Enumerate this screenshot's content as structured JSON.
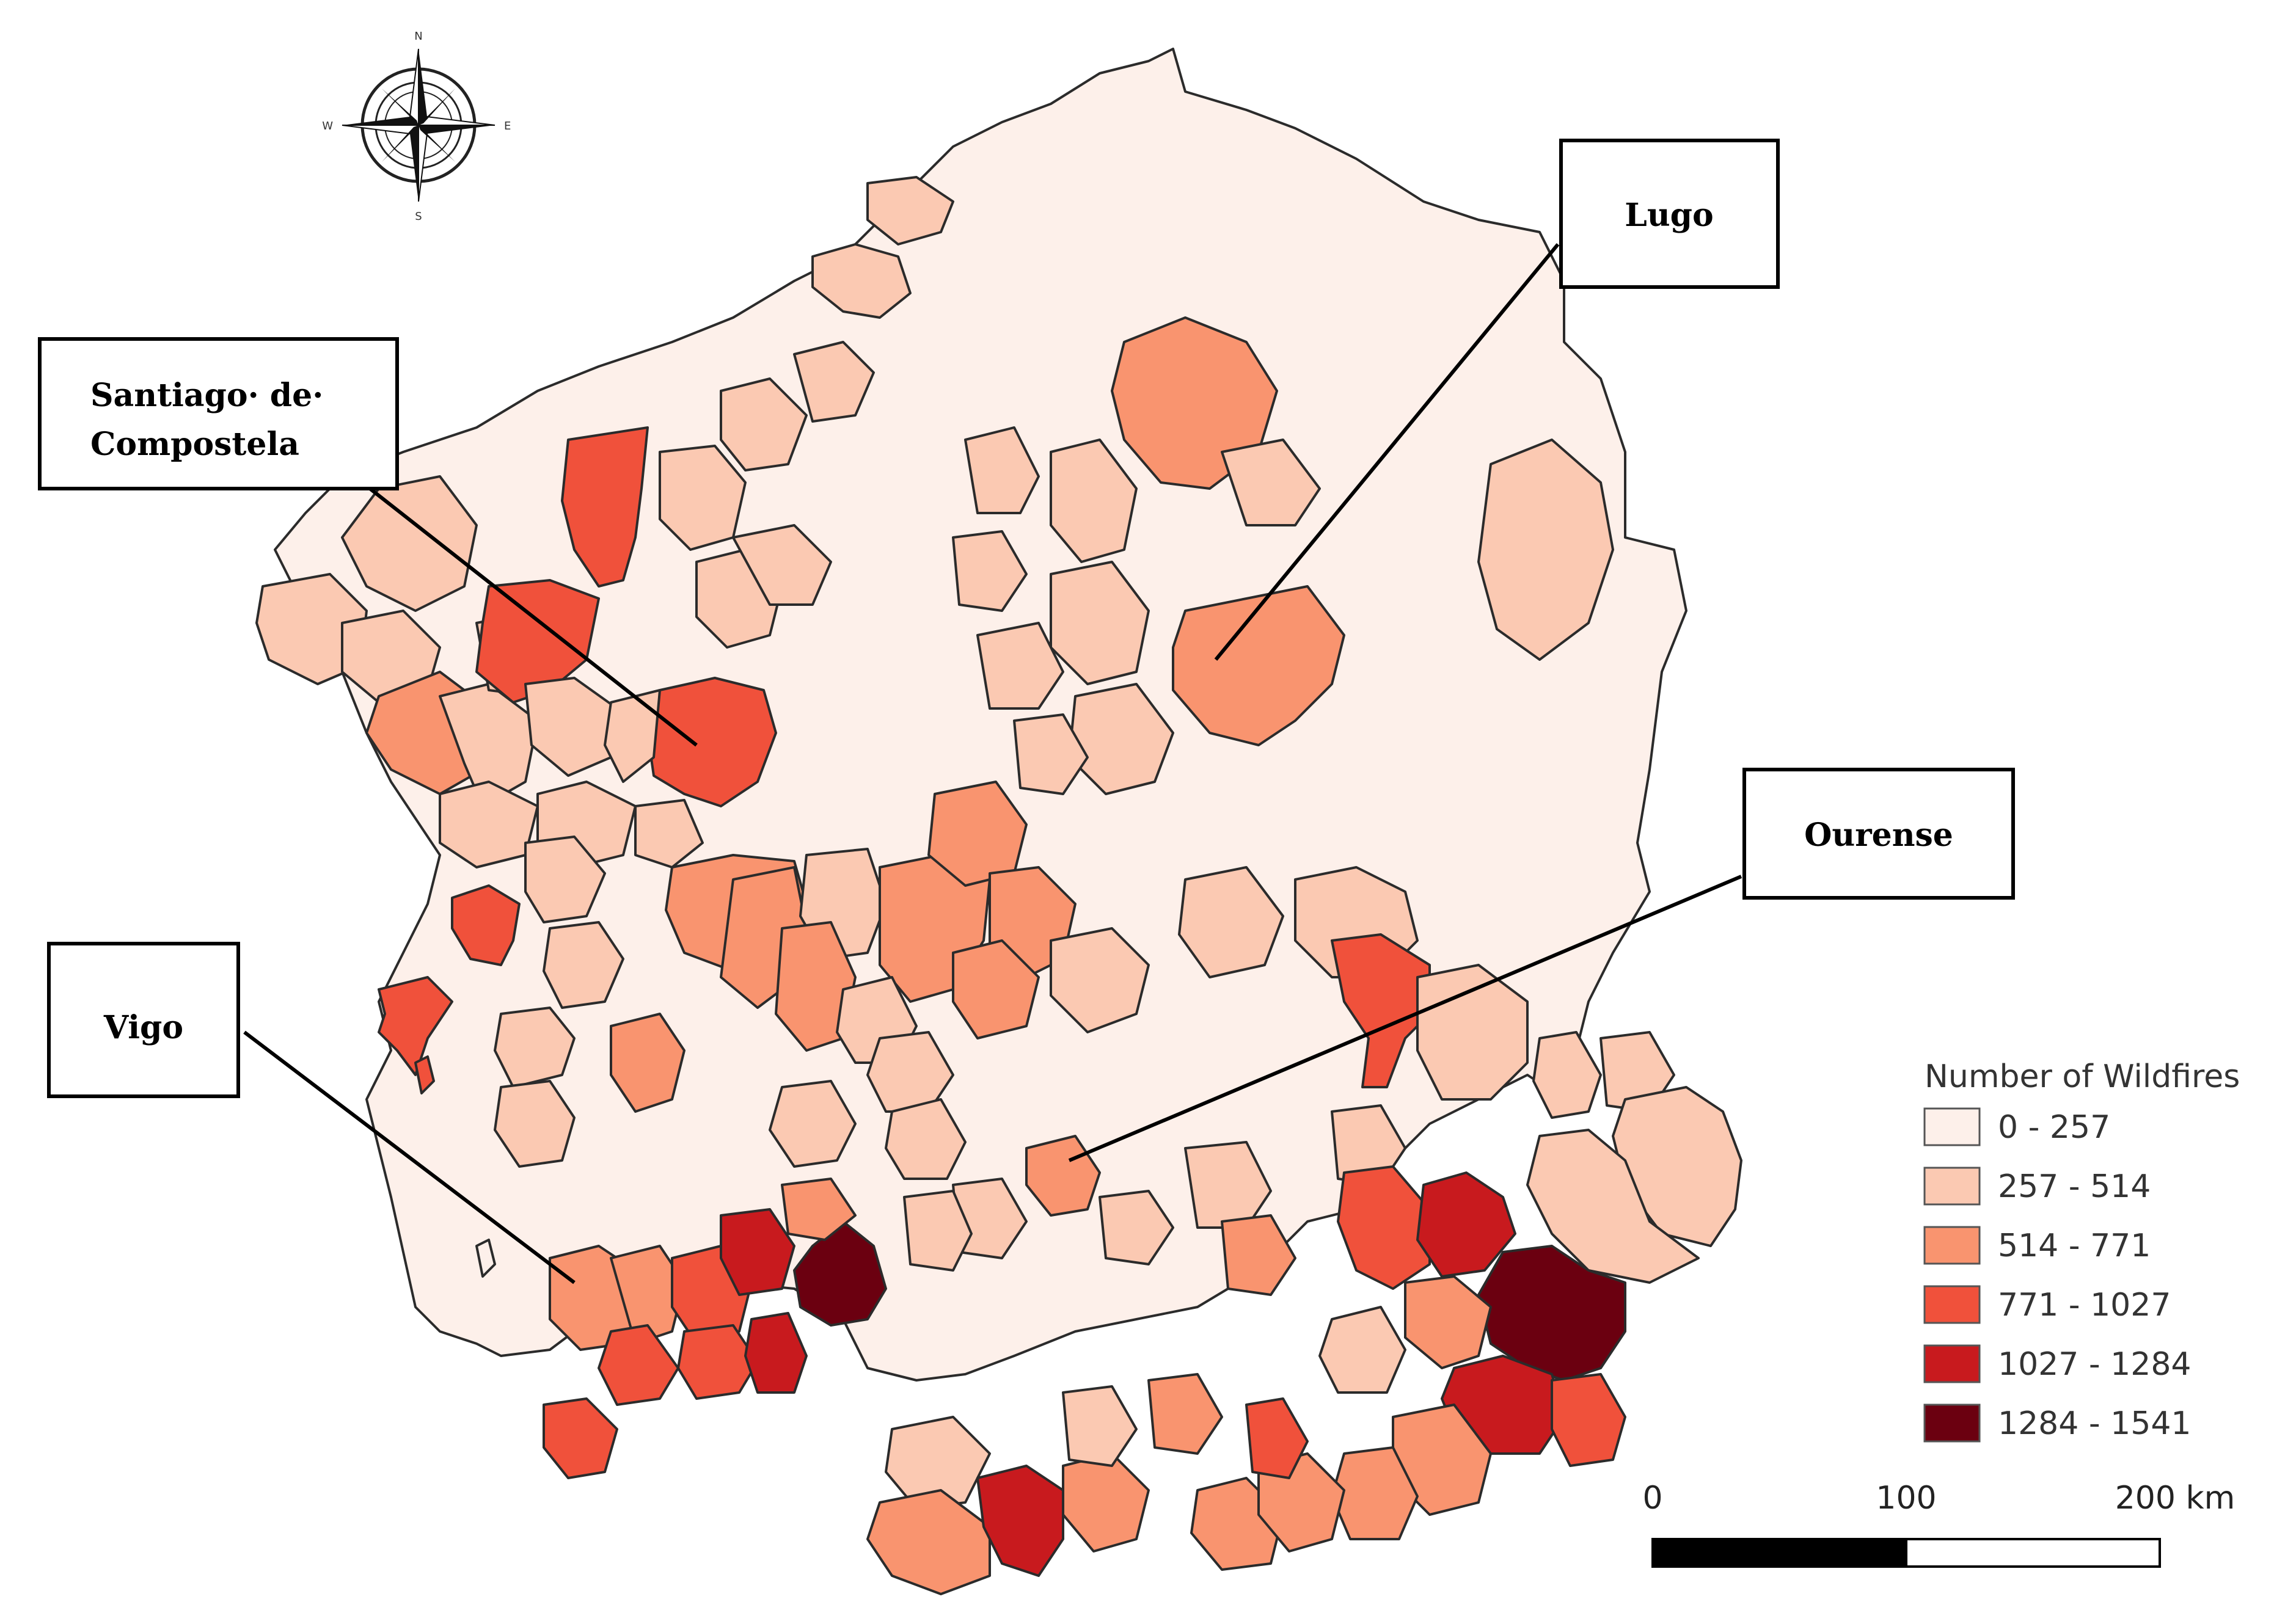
{
  "map": {
    "region_labels": [
      {
        "id": "lugo",
        "text": "Lugo"
      },
      {
        "id": "santiago",
        "lines": [
          "Santiago· de·",
          "Compostela"
        ]
      },
      {
        "id": "ourense",
        "text": "Ourense"
      },
      {
        "id": "vigo",
        "text": "Vigo"
      }
    ],
    "legend": {
      "title": "Number of Wildfires",
      "classes": [
        {
          "label": "0 - 257",
          "color": "#fdf0ea"
        },
        {
          "label": "257 - 514",
          "color": "#fbc9b2"
        },
        {
          "label": "514 - 771",
          "color": "#f9946f"
        },
        {
          "label": "771 - 1027",
          "color": "#f0513b"
        },
        {
          "label": "1027 - 1284",
          "color": "#c81a1e"
        },
        {
          "label": "1284 - 1541",
          "color": "#6b0010"
        }
      ]
    },
    "scale_bar": {
      "labels": [
        "0",
        "100",
        "200 km"
      ]
    },
    "compass": {
      "n": "N",
      "s": "S",
      "e": "E",
      "w": "W"
    }
  }
}
